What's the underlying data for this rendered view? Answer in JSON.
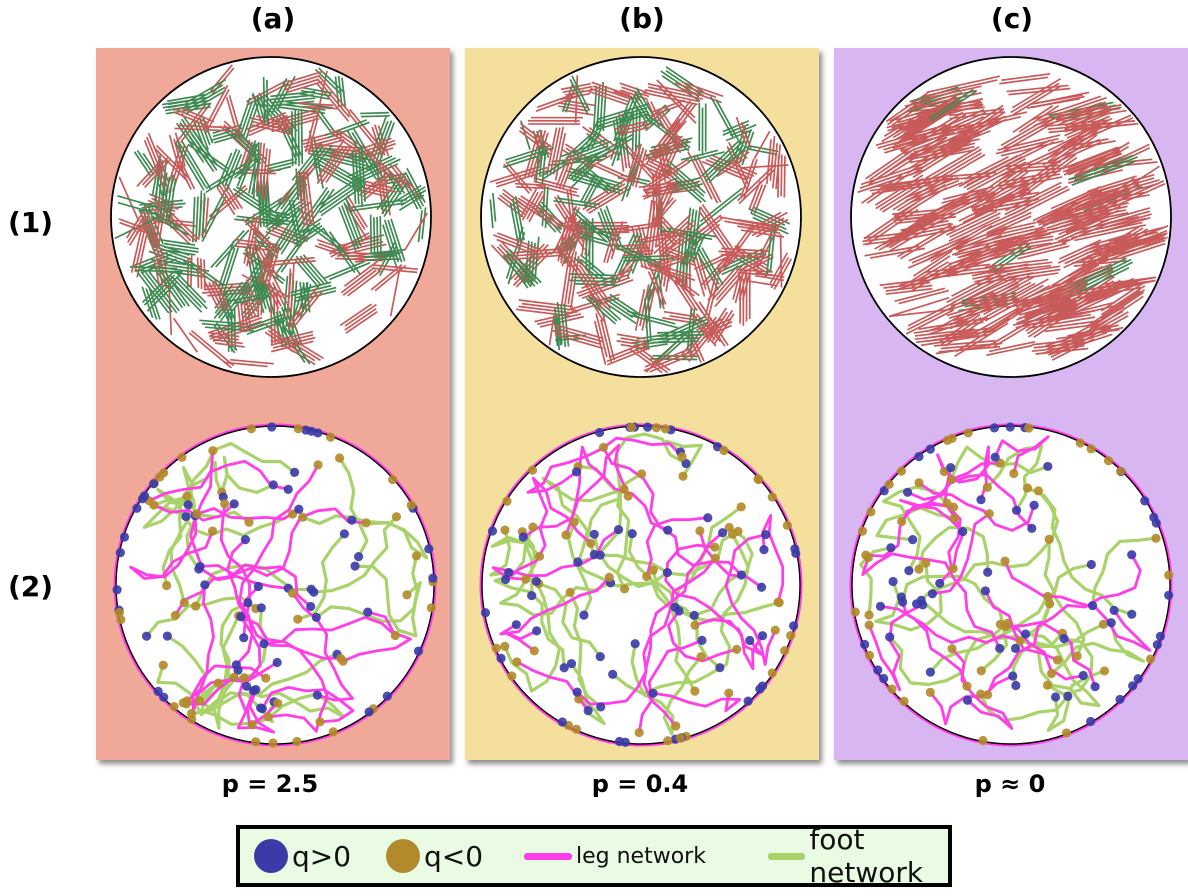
{
  "columns": [
    {
      "label": "(a)",
      "param": "p = 2.5",
      "bg": "#f0a998"
    },
    {
      "label": "(b)",
      "param": "p = 0.4",
      "bg": "#f5df9c"
    },
    {
      "label": "(c)",
      "param": "p ≈ 0",
      "bg": "#d7b6f2"
    }
  ],
  "rows": [
    "(1)",
    "(2)"
  ],
  "legend": {
    "q_pos": "q>0",
    "q_neg": "q<0",
    "leg": "leg network",
    "foot": "foot network"
  },
  "colors": {
    "red_rod": "#c85a5a",
    "green_rod": "#3f8a52",
    "q_pos": "#3a3aa8",
    "q_neg": "#b38a2a",
    "leg": "#ff3ee8",
    "foot": "#a9d36a"
  },
  "green_fraction": [
    0.6,
    0.32,
    0.04
  ]
}
